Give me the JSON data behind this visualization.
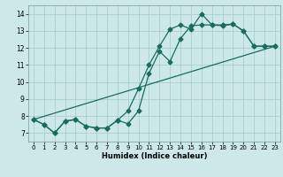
{
  "xlabel": "Humidex (Indice chaleur)",
  "bg_color": "#cce8e8",
  "grid_color": "#aacece",
  "line_color": "#1a6b60",
  "xlim": [
    -0.5,
    23.5
  ],
  "ylim": [
    6.5,
    14.5
  ],
  "xticks": [
    0,
    1,
    2,
    3,
    4,
    5,
    6,
    7,
    8,
    9,
    10,
    11,
    12,
    13,
    14,
    15,
    16,
    17,
    18,
    19,
    20,
    21,
    22,
    23
  ],
  "yticks": [
    7,
    8,
    9,
    10,
    11,
    12,
    13,
    14
  ],
  "line1_x": [
    0,
    1,
    2,
    3,
    4,
    5,
    6,
    7,
    8,
    9,
    10,
    11,
    12,
    13,
    14,
    15,
    16,
    17,
    18,
    19,
    20,
    21,
    22,
    23
  ],
  "line1_y": [
    7.8,
    7.5,
    7.0,
    7.7,
    7.8,
    7.4,
    7.3,
    7.3,
    7.75,
    8.3,
    9.6,
    11.0,
    12.1,
    13.1,
    13.35,
    13.1,
    14.0,
    13.35,
    13.3,
    13.4,
    13.0,
    12.1,
    12.1,
    12.1
  ],
  "line2_x": [
    0,
    1,
    2,
    3,
    4,
    5,
    6,
    7,
    8,
    9,
    10,
    11,
    12,
    13,
    14,
    15,
    16,
    17,
    18,
    19,
    20,
    21,
    22,
    23
  ],
  "line2_y": [
    7.8,
    7.5,
    7.0,
    7.7,
    7.8,
    7.4,
    7.3,
    7.3,
    7.75,
    7.55,
    8.3,
    10.5,
    11.8,
    11.2,
    12.55,
    13.3,
    13.35,
    13.35,
    13.35,
    13.4,
    13.0,
    12.1,
    12.1,
    12.1
  ],
  "line3_x": [
    0,
    23
  ],
  "line3_y": [
    7.8,
    12.1
  ]
}
